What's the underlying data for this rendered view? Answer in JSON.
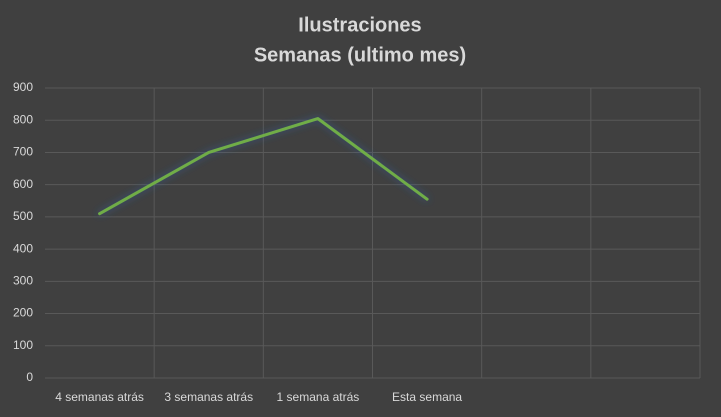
{
  "chart_data": {
    "type": "line",
    "title": [
      "Ilustraciones",
      "Semanas (ultimo mes)"
    ],
    "categories": [
      "4 semanas atrás",
      "3 semanas atrás",
      "1 semana atrás",
      "Esta semana",
      null,
      null
    ],
    "series": [
      {
        "name": "Ilustraciones",
        "color": "#70ad47",
        "values": [
          510,
          700,
          805,
          555,
          null,
          null
        ]
      }
    ],
    "ylim": [
      0,
      900
    ],
    "yticks": [
      0,
      100,
      200,
      300,
      400,
      500,
      600,
      700,
      800,
      900
    ],
    "grid": true,
    "legend": false
  }
}
